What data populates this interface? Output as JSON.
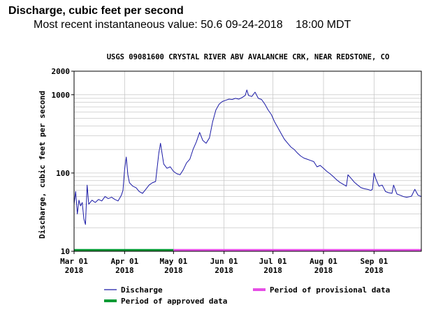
{
  "header": {
    "title": "Discharge, cubic feet per second",
    "latest_label": "Most recent instantaneous value:",
    "latest_value": "50.6",
    "latest_date": "09-24-2018",
    "latest_time": "18:00 MDT"
  },
  "chart_data": {
    "type": "line",
    "title": "USGS 09081600 CRYSTAL RIVER ABV AVALANCHE CRK, NEAR REDSTONE, CO",
    "ylabel": "Discharge, cubic feet per second",
    "xlabel": "",
    "yscale": "log",
    "ylim": [
      10,
      2000
    ],
    "xlim": [
      "2018-03-01",
      "2018-09-30"
    ],
    "grid": true,
    "yticks": [
      {
        "value": 10,
        "label": "10"
      },
      {
        "value": 100,
        "label": "100"
      },
      {
        "value": 1000,
        "label": "1000"
      },
      {
        "value": 2000,
        "label": "2000"
      }
    ],
    "xticks": [
      {
        "date": "2018-03-01",
        "label": "Mar 01",
        "year": "2018"
      },
      {
        "date": "2018-04-01",
        "label": "Apr 01",
        "year": "2018"
      },
      {
        "date": "2018-05-01",
        "label": "May 01",
        "year": "2018"
      },
      {
        "date": "2018-06-01",
        "label": "Jun 01",
        "year": "2018"
      },
      {
        "date": "2018-07-01",
        "label": "Jul 01",
        "year": "2018"
      },
      {
        "date": "2018-08-01",
        "label": "Aug 01",
        "year": "2018"
      },
      {
        "date": "2018-09-01",
        "label": "Sep 01",
        "year": "2018"
      }
    ],
    "series": [
      {
        "name": "Discharge",
        "color": "#1a1aa6",
        "points": [
          [
            "2018-03-01",
            40
          ],
          [
            "2018-03-02",
            58
          ],
          [
            "2018-03-03",
            30
          ],
          [
            "2018-03-04",
            45
          ],
          [
            "2018-03-05",
            38
          ],
          [
            "2018-03-06",
            42
          ],
          [
            "2018-03-07",
            26
          ],
          [
            "2018-03-08",
            22
          ],
          [
            "2018-03-09",
            70
          ],
          [
            "2018-03-10",
            40
          ],
          [
            "2018-03-12",
            45
          ],
          [
            "2018-03-14",
            42
          ],
          [
            "2018-03-16",
            46
          ],
          [
            "2018-03-18",
            44
          ],
          [
            "2018-03-20",
            50
          ],
          [
            "2018-03-22",
            47
          ],
          [
            "2018-03-24",
            49
          ],
          [
            "2018-03-26",
            46
          ],
          [
            "2018-03-28",
            44
          ],
          [
            "2018-03-30",
            52
          ],
          [
            "2018-03-31",
            60
          ],
          [
            "2018-04-01",
            110
          ],
          [
            "2018-04-02",
            160
          ],
          [
            "2018-04-03",
            95
          ],
          [
            "2018-04-04",
            75
          ],
          [
            "2018-04-06",
            68
          ],
          [
            "2018-04-08",
            65
          ],
          [
            "2018-04-10",
            58
          ],
          [
            "2018-04-12",
            55
          ],
          [
            "2018-04-14",
            62
          ],
          [
            "2018-04-16",
            70
          ],
          [
            "2018-04-18",
            75
          ],
          [
            "2018-04-20",
            78
          ],
          [
            "2018-04-22",
            180
          ],
          [
            "2018-04-23",
            240
          ],
          [
            "2018-04-25",
            130
          ],
          [
            "2018-04-27",
            115
          ],
          [
            "2018-04-29",
            120
          ],
          [
            "2018-05-01",
            105
          ],
          [
            "2018-05-03",
            98
          ],
          [
            "2018-05-05",
            95
          ],
          [
            "2018-05-07",
            110
          ],
          [
            "2018-05-09",
            135
          ],
          [
            "2018-05-11",
            150
          ],
          [
            "2018-05-13",
            200
          ],
          [
            "2018-05-15",
            250
          ],
          [
            "2018-05-17",
            330
          ],
          [
            "2018-05-19",
            260
          ],
          [
            "2018-05-21",
            240
          ],
          [
            "2018-05-23",
            280
          ],
          [
            "2018-05-25",
            450
          ],
          [
            "2018-05-27",
            640
          ],
          [
            "2018-05-29",
            760
          ],
          [
            "2018-05-31",
            820
          ],
          [
            "2018-06-02",
            850
          ],
          [
            "2018-06-04",
            880
          ],
          [
            "2018-06-06",
            870
          ],
          [
            "2018-06-08",
            900
          ],
          [
            "2018-06-10",
            880
          ],
          [
            "2018-06-12",
            920
          ],
          [
            "2018-06-14",
            980
          ],
          [
            "2018-06-15",
            1150
          ],
          [
            "2018-06-16",
            980
          ],
          [
            "2018-06-18",
            950
          ],
          [
            "2018-06-20",
            1080
          ],
          [
            "2018-06-22",
            900
          ],
          [
            "2018-06-24",
            870
          ],
          [
            "2018-06-26",
            760
          ],
          [
            "2018-06-28",
            640
          ],
          [
            "2018-06-30",
            560
          ],
          [
            "2018-07-02",
            450
          ],
          [
            "2018-07-04",
            380
          ],
          [
            "2018-07-06",
            320
          ],
          [
            "2018-07-08",
            270
          ],
          [
            "2018-07-10",
            240
          ],
          [
            "2018-07-12",
            215
          ],
          [
            "2018-07-14",
            200
          ],
          [
            "2018-07-16",
            180
          ],
          [
            "2018-07-18",
            165
          ],
          [
            "2018-07-20",
            155
          ],
          [
            "2018-07-22",
            150
          ],
          [
            "2018-07-24",
            145
          ],
          [
            "2018-07-26",
            140
          ],
          [
            "2018-07-28",
            120
          ],
          [
            "2018-07-30",
            125
          ],
          [
            "2018-08-01",
            115
          ],
          [
            "2018-08-03",
            105
          ],
          [
            "2018-08-05",
            98
          ],
          [
            "2018-08-07",
            90
          ],
          [
            "2018-08-09",
            82
          ],
          [
            "2018-08-11",
            76
          ],
          [
            "2018-08-13",
            72
          ],
          [
            "2018-08-15",
            68
          ],
          [
            "2018-08-16",
            95
          ],
          [
            "2018-08-18",
            85
          ],
          [
            "2018-08-20",
            76
          ],
          [
            "2018-08-22",
            70
          ],
          [
            "2018-08-24",
            65
          ],
          [
            "2018-08-26",
            63
          ],
          [
            "2018-08-28",
            62
          ],
          [
            "2018-08-30",
            60
          ],
          [
            "2018-08-31",
            62
          ],
          [
            "2018-09-01",
            100
          ],
          [
            "2018-09-02",
            85
          ],
          [
            "2018-09-04",
            68
          ],
          [
            "2018-09-06",
            70
          ],
          [
            "2018-09-08",
            58
          ],
          [
            "2018-09-10",
            56
          ],
          [
            "2018-09-12",
            55
          ],
          [
            "2018-09-13",
            70
          ],
          [
            "2018-09-15",
            54
          ],
          [
            "2018-09-17",
            52
          ],
          [
            "2018-09-19",
            50
          ],
          [
            "2018-09-21",
            49
          ],
          [
            "2018-09-23",
            50
          ],
          [
            "2018-09-24",
            50.6
          ],
          [
            "2018-09-26",
            62
          ],
          [
            "2018-09-28",
            52
          ],
          [
            "2018-09-30",
            50
          ]
        ]
      }
    ],
    "approval_bars": [
      {
        "name": "Period of approved data",
        "color": "#009933",
        "start": "2018-03-01",
        "end": "2018-05-01"
      },
      {
        "name": "Period of provisional data",
        "color": "#e64ee6",
        "start": "2018-05-01",
        "end": "2018-09-30"
      }
    ],
    "legend": [
      {
        "label": "Discharge",
        "color": "#1a1aa6",
        "style": "thin"
      },
      {
        "label": "Period of provisional data",
        "color": "#e64ee6",
        "style": "thick"
      },
      {
        "label": "Period of approved data",
        "color": "#009933",
        "style": "thick"
      }
    ],
    "legend_position": "bottom"
  }
}
